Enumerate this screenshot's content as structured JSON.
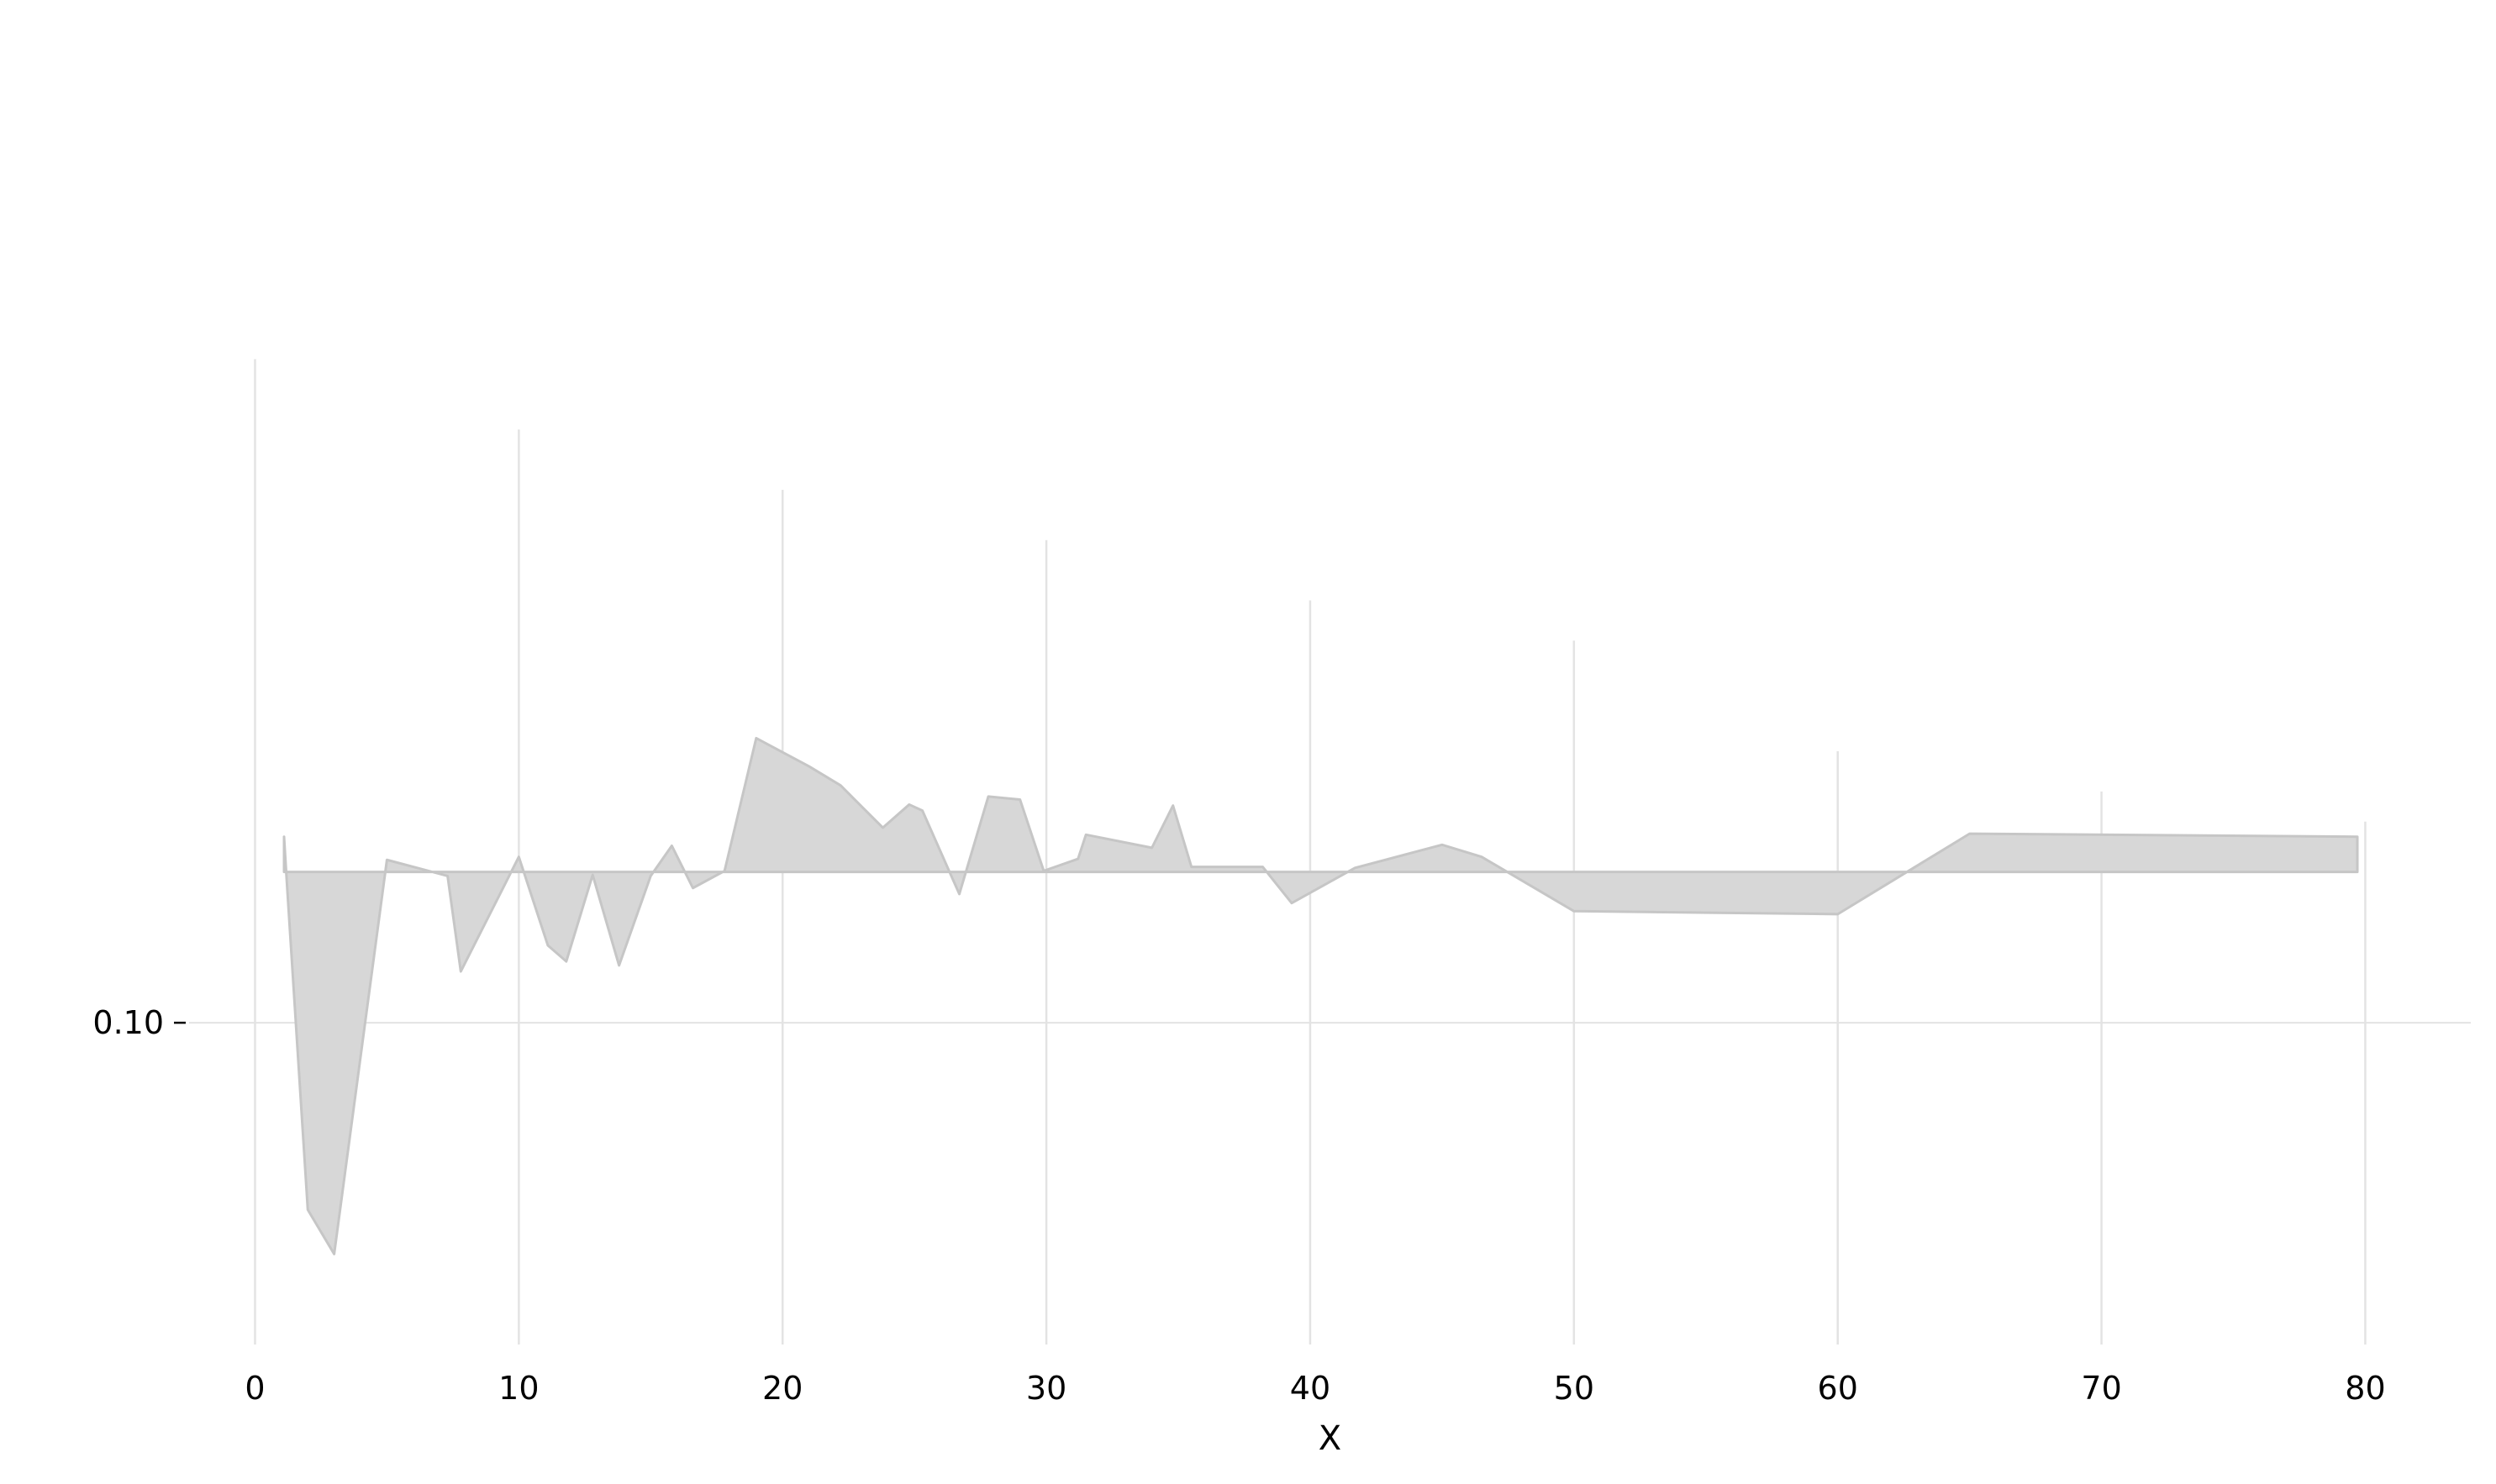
{
  "chart_data": {
    "type": "area",
    "title": "",
    "xlabel": "X",
    "ylabel": "",
    "baseline": 0.115,
    "xlim": [
      -2.5,
      84
    ],
    "ylim": [
      0.068,
      0.185
    ],
    "xticks": [
      0,
      10,
      20,
      30,
      40,
      50,
      60,
      70,
      80
    ],
    "xtick_labels": [
      "0",
      "10",
      "20",
      "30",
      "40",
      "50",
      "60",
      "70",
      "80"
    ],
    "yticks": [
      0.1
    ],
    "ytick_labels": [
      "0.10"
    ],
    "vertical_lines": [
      {
        "x": 0,
        "top": 0.166
      },
      {
        "x": 10,
        "top": 0.159
      },
      {
        "x": 20,
        "top": 0.153
      },
      {
        "x": 30,
        "top": 0.148
      },
      {
        "x": 40,
        "top": 0.142
      },
      {
        "x": 50,
        "top": 0.138
      },
      {
        "x": 60,
        "top": 0.127
      },
      {
        "x": 70,
        "top": 0.123
      },
      {
        "x": 80,
        "top": 0.12
      }
    ],
    "grid": true,
    "colors": {
      "fill": "#d7d7d7",
      "edge": "#c6c6c6",
      "grid": "#e3e3e3"
    },
    "series": [
      {
        "x": [
          1.1,
          1.2,
          2.0,
          3.0,
          5.0,
          7.3,
          7.8,
          10.0,
          11.1,
          11.8,
          12.8,
          13.8,
          15.0,
          15.8,
          16.6,
          17.8,
          19.0,
          21.0,
          22.2,
          23.8,
          24.8,
          25.3,
          26.7,
          27.8,
          29.0,
          29.9,
          31.2,
          31.5,
          34.0,
          34.8,
          35.5,
          38.2,
          39.3,
          41.7,
          45.0,
          46.5,
          50.0,
          60.0,
          65.0,
          79.7
        ],
        "y": [
          0.1185,
          0.1142,
          0.0814,
          0.077,
          0.1162,
          0.1146,
          0.1051,
          0.1165,
          0.1077,
          0.1061,
          0.1147,
          0.1057,
          0.1146,
          0.1176,
          0.1134,
          0.1151,
          0.1283,
          0.1255,
          0.1236,
          0.1194,
          0.1217,
          0.1211,
          0.1128,
          0.1225,
          0.1222,
          0.1151,
          0.1163,
          0.1187,
          0.1174,
          0.1216,
          0.1155,
          0.1155,
          0.1119,
          0.1154,
          0.1177,
          0.1165,
          0.1111,
          0.1108,
          0.1188,
          0.1185
        ]
      }
    ]
  }
}
